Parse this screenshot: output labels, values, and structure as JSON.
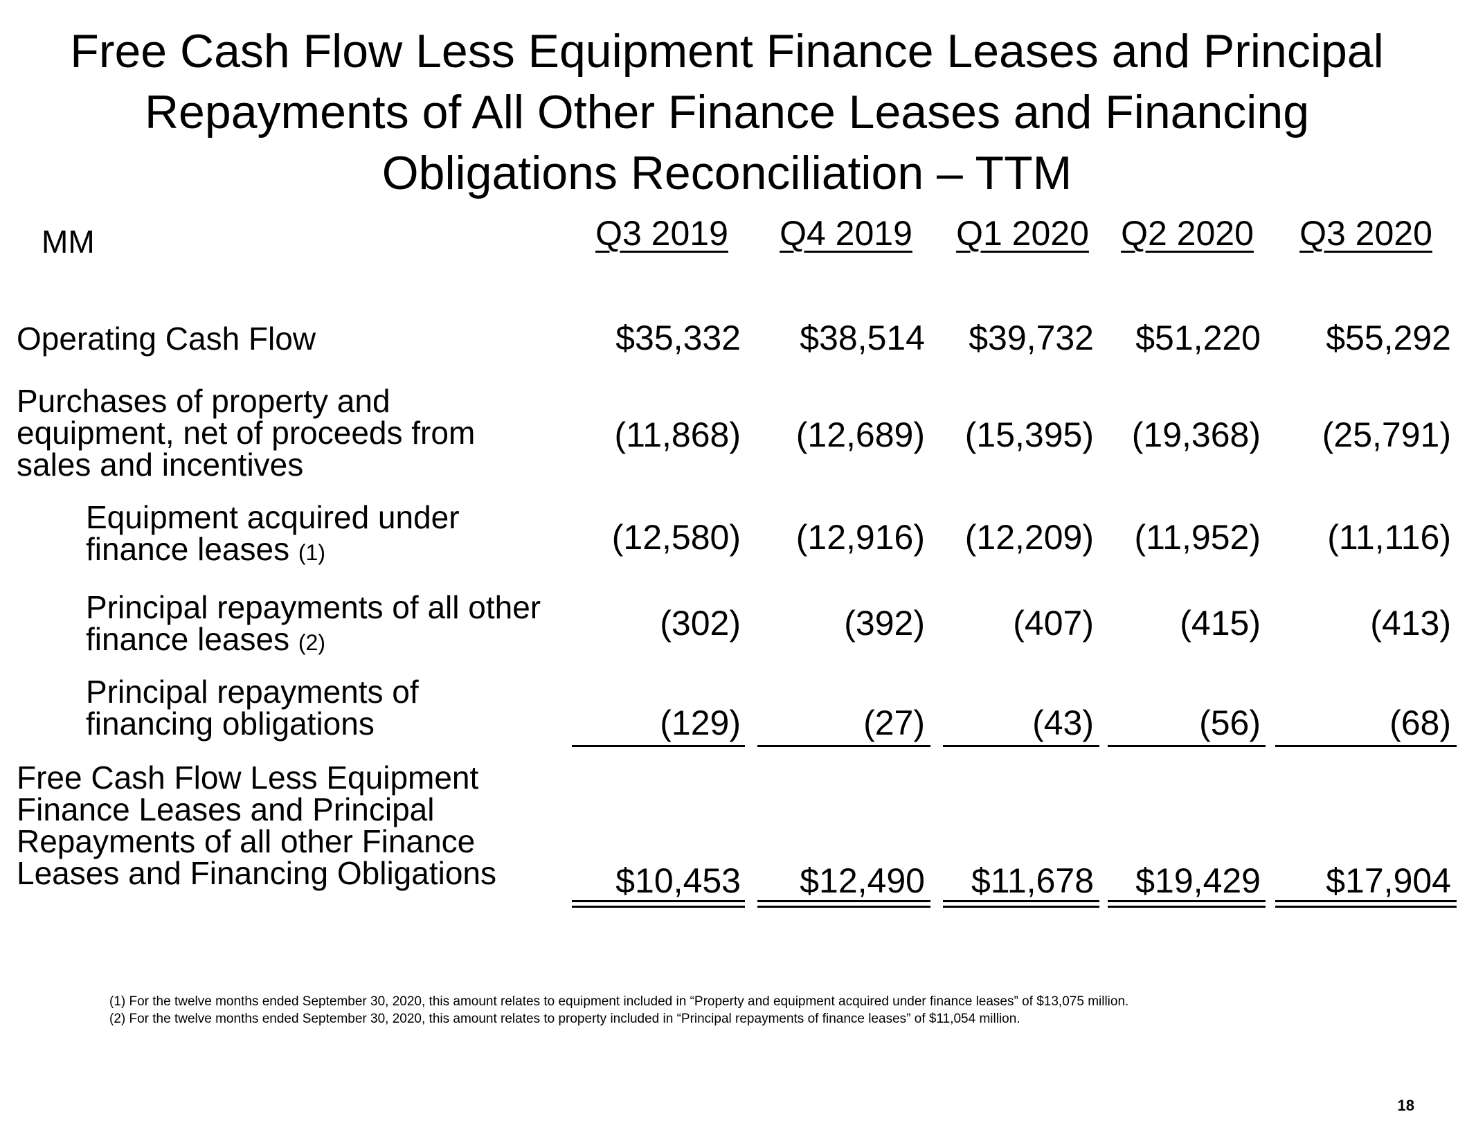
{
  "title": {
    "line1": "Free Cash Flow Less Equipment Finance Leases and Principal",
    "line2": "Repayments of All Other Finance Leases and Financing",
    "line3": "Obligations Reconciliation – TTM"
  },
  "units_label": "MM",
  "columns": [
    "Q3 2019",
    "Q4 2019",
    "Q1 2020",
    "Q2 2020",
    "Q3 2020"
  ],
  "rows": [
    {
      "label_lines": [
        "Operating Cash Flow"
      ],
      "values": [
        "$35,332",
        "$38,514",
        "$39,732",
        "$51,220",
        "$55,292"
      ]
    },
    {
      "label_lines": [
        "Purchases of property and",
        "equipment, net of proceeds from",
        "sales and incentives"
      ],
      "values": [
        "(11,868)",
        "(12,689)",
        "(15,395)",
        "(19,368)",
        "(25,791)"
      ]
    },
    {
      "label_lines": [
        "Equipment acquired under",
        "finance leases"
      ],
      "note": "(1)",
      "values": [
        "(12,580)",
        "(12,916)",
        "(12,209)",
        "(11,952)",
        "(11,116)"
      ]
    },
    {
      "label_lines": [
        "Principal repayments of all other",
        "finance leases"
      ],
      "note": "(2)",
      "values": [
        "(302)",
        "(392)",
        "(407)",
        "(415)",
        "(413)"
      ]
    },
    {
      "label_lines": [
        "Principal repayments of",
        "financing obligations"
      ],
      "values": [
        "(129)",
        "(27)",
        "(43)",
        "(56)",
        "(68)"
      ]
    },
    {
      "label_lines": [
        "Free Cash Flow Less Equipment",
        "Finance Leases and Principal",
        "Repayments of all other Finance",
        "Leases and Financing Obligations"
      ],
      "values": [
        "$10,453",
        "$12,490",
        "$11,678",
        "$19,429",
        "$17,904"
      ]
    }
  ],
  "footnotes": [
    "(1) For the twelve months ended September 30, 2020, this amount relates to equipment included in “Property and equipment acquired under finance leases” of $13,075 million.",
    "(2) For the twelve months ended September 30, 2020, this amount relates to property included in “Principal repayments of finance leases” of $11,054 million."
  ],
  "page_number": "18"
}
